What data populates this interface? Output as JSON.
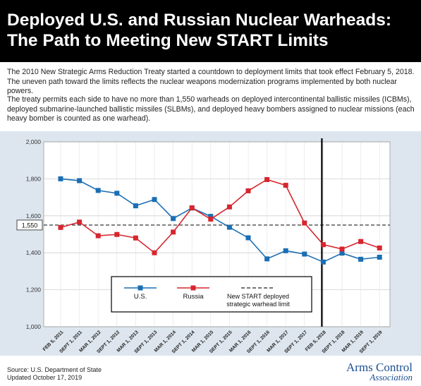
{
  "header": {
    "title_line1": "Deployed U.S. and Russian Nuclear Warheads:",
    "title_line2": "The Path to Meeting New START Limits"
  },
  "intro": {
    "paragraph1": "The 2010 New Strategic Arms Reduction Treaty started a countdown to deployment limits that took effect February 5, 2018. The uneven path toward the limits reflects the nuclear weapons modernization programs implemented by both nuclear powers.",
    "paragraph2": "The treaty permits each side to have no more than 1,550 warheads on deployed intercontinental ballistic missiles (ICBMs), deployed submarine-launched ballistic missiles (SLBMs), and deployed heavy bombers assigned to nuclear missions (each heavy bomber is counted as one warhead)."
  },
  "colors": {
    "us": "#1a6eb4",
    "russia": "#d7262e",
    "panel_bg": "#dde6ee",
    "logo": "#1d4f91"
  },
  "chart_data": {
    "type": "line",
    "categories": [
      "FEB 5, 2011",
      "SEPT 1, 2011",
      "MAR 1, 2012",
      "SEPT 1, 2012",
      "MAR 1, 2013",
      "SEPT 1, 2013",
      "MAR 1, 2014",
      "SEPT 1, 2014",
      "MAR 1, 2015",
      "SEPT 1, 2015",
      "MAR 1, 2016",
      "SEPT 1, 2016",
      "MAR 1, 2017",
      "SEPT 1, 2017",
      "FEB 5, 2018",
      "SEPT 1, 2018",
      "MAR 1, 2019",
      "SEPT 1, 2019"
    ],
    "series": [
      {
        "name": "U.S.",
        "values": [
          1800,
          1790,
          1737,
          1722,
          1654,
          1688,
          1585,
          1642,
          1597,
          1538,
          1481,
          1367,
          1411,
          1393,
          1350,
          1398,
          1365,
          1376
        ]
      },
      {
        "name": "Russia",
        "values": [
          1537,
          1566,
          1492,
          1499,
          1480,
          1400,
          1512,
          1643,
          1582,
          1648,
          1735,
          1796,
          1765,
          1561,
          1444,
          1420,
          1461,
          1426
        ]
      }
    ],
    "limit": {
      "value": 1550,
      "label": "New START deployed strategic warhead limit",
      "tick_label": "1,550"
    },
    "yticks": [
      "1,000",
      "1,200",
      "1,400",
      "1,600",
      "1,800",
      "2,000"
    ],
    "ylim": [
      1000,
      2000
    ],
    "grid": true,
    "treaty_deadline_category": "FEB 5, 2018",
    "legend_position": "bottom-center"
  },
  "source": {
    "line1": "Source: U.S. Department of State",
    "line2": "Updated October 17, 2019"
  },
  "logo": {
    "line1": "Arms Control",
    "line2": "Association"
  }
}
